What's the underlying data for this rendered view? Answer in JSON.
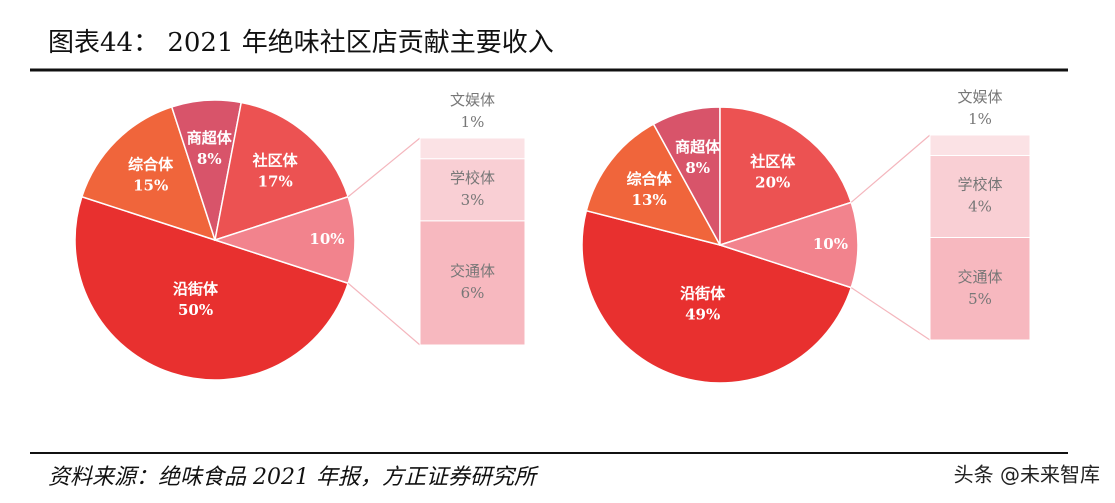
{
  "title": "图表44：  2021 年绝味社区店贡献主要收入",
  "source": "资料来源：绝味食品 2021 年报，方正证券研究所",
  "watermark": "头条 @未来智库",
  "chart_data": [
    {
      "type": "pie",
      "categories": [
        "沿街体",
        "综合体",
        "商超体",
        "社区体",
        null
      ],
      "values": [
        50,
        15,
        8,
        17,
        10
      ],
      "value_labels": [
        "50%",
        "15%",
        "8%",
        "17%",
        "10%"
      ],
      "colors": [
        "#e8302f",
        "#f0653b",
        "#d8546a",
        "#ec5252",
        "#f2838d"
      ],
      "breakdown": {
        "categories": [
          "交通体",
          "学校体",
          "文娱体"
        ],
        "values": [
          6,
          3,
          1
        ],
        "value_labels": [
          "6%",
          "3%",
          "1%"
        ],
        "colors": [
          "#f7b8bf",
          "#f9cfd4",
          "#fbe2e5"
        ]
      }
    },
    {
      "type": "pie",
      "categories": [
        "沿街体",
        "综合体",
        "商超体",
        "社区体",
        null
      ],
      "values": [
        49,
        13,
        8,
        20,
        10
      ],
      "value_labels": [
        "49%",
        "13%",
        "8%",
        "20%",
        "10%"
      ],
      "colors": [
        "#e8302f",
        "#f0653b",
        "#d8546a",
        "#ec5252",
        "#f2838d"
      ],
      "breakdown": {
        "categories": [
          "交通体",
          "学校体",
          "文娱体"
        ],
        "values": [
          5,
          4,
          1
        ],
        "value_labels": [
          "5%",
          "4%",
          "1%"
        ],
        "colors": [
          "#f7b8bf",
          "#f9cfd4",
          "#fbe2e5"
        ]
      }
    }
  ]
}
